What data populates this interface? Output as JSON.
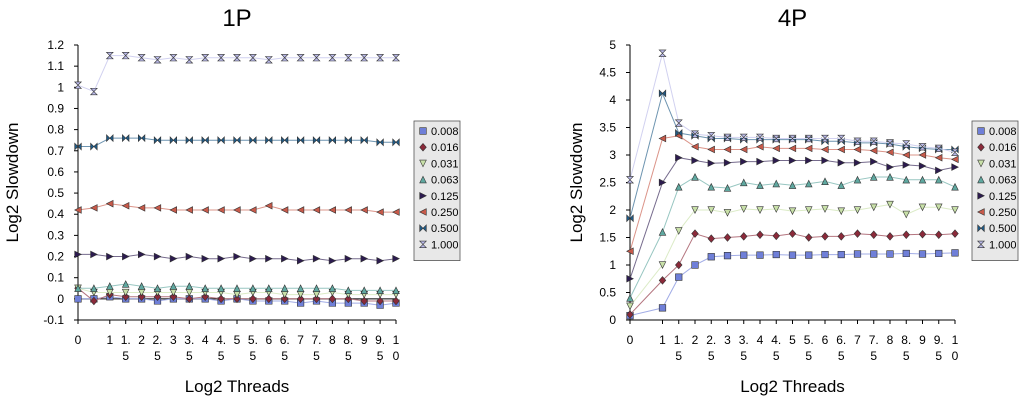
{
  "chart_data": [
    {
      "type": "line",
      "title": "1P",
      "xlabel": "Log2 Threads",
      "ylabel": "Log2 Slowdown",
      "ylim": [
        -0.1,
        1.2
      ],
      "yticks": [
        "-0.1",
        "0",
        "0.1",
        "0.2",
        "0.3",
        "0.4",
        "0.5",
        "0.6",
        "0.7",
        "0.8",
        "0.9",
        "1",
        "1.1",
        "1.2"
      ],
      "xlim": [
        0,
        10
      ],
      "xtick_labels": [
        [
          "0"
        ],
        [
          "1"
        ],
        [
          "1.",
          "5"
        ],
        [
          "2"
        ],
        [
          "2.",
          "5"
        ],
        [
          "3"
        ],
        [
          "3.",
          "5"
        ],
        [
          "4"
        ],
        [
          "4.",
          "5"
        ],
        [
          "5"
        ],
        [
          "5.",
          "5"
        ],
        [
          "6"
        ],
        [
          "6.",
          "5"
        ],
        [
          "7"
        ],
        [
          "7.",
          "5"
        ],
        [
          "8"
        ],
        [
          "8.",
          "5"
        ],
        [
          "9"
        ],
        [
          "9.",
          "5"
        ],
        [
          "1",
          "0"
        ]
      ],
      "grid": false,
      "legend_position": "right",
      "x": [
        0,
        0.5,
        1,
        1.5,
        2,
        2.5,
        3,
        3.5,
        4,
        4.5,
        5,
        5.5,
        6,
        6.5,
        7,
        7.5,
        8,
        8.5,
        9,
        9.5,
        10
      ],
      "series": [
        {
          "name": "0.008",
          "color": "#6f7fd8",
          "marker": "square",
          "values": [
            0.0,
            0.0,
            0.01,
            0.0,
            0.0,
            -0.01,
            0.0,
            0.0,
            0.0,
            -0.01,
            0.0,
            -0.01,
            -0.01,
            -0.01,
            -0.02,
            -0.01,
            -0.02,
            -0.02,
            -0.02,
            -0.03,
            -0.02
          ]
        },
        {
          "name": "0.016",
          "color": "#8b2a3a",
          "marker": "diamond",
          "values": [
            0.05,
            -0.01,
            0.02,
            0.01,
            0.01,
            0.01,
            0.01,
            0.0,
            0.01,
            0.0,
            0.0,
            0.0,
            0.0,
            0.0,
            0.0,
            0.0,
            0.0,
            0.0,
            -0.01,
            -0.01,
            -0.01
          ]
        },
        {
          "name": "0.031",
          "color": "#c8e0a8",
          "marker": "tri-down",
          "values": [
            0.05,
            0.03,
            0.03,
            0.03,
            0.03,
            0.03,
            0.03,
            0.03,
            0.03,
            0.03,
            0.02,
            0.03,
            0.03,
            0.02,
            0.02,
            0.02,
            0.03,
            0.02,
            0.02,
            0.02,
            0.02
          ]
        },
        {
          "name": "0.063",
          "color": "#5fa8a0",
          "marker": "tri-up",
          "values": [
            0.05,
            0.05,
            0.06,
            0.07,
            0.06,
            0.05,
            0.06,
            0.06,
            0.05,
            0.05,
            0.05,
            0.05,
            0.05,
            0.05,
            0.05,
            0.05,
            0.05,
            0.04,
            0.04,
            0.04,
            0.04
          ]
        },
        {
          "name": "0.125",
          "color": "#2c1b4f",
          "marker": "tri-right",
          "values": [
            0.21,
            0.21,
            0.2,
            0.2,
            0.21,
            0.2,
            0.19,
            0.2,
            0.19,
            0.19,
            0.2,
            0.19,
            0.19,
            0.19,
            0.18,
            0.19,
            0.18,
            0.19,
            0.19,
            0.18,
            0.19
          ]
        },
        {
          "name": "0.250",
          "color": "#c75a4a",
          "marker": "tri-left",
          "values": [
            0.42,
            0.43,
            0.45,
            0.44,
            0.43,
            0.43,
            0.42,
            0.42,
            0.42,
            0.42,
            0.42,
            0.42,
            0.44,
            0.42,
            0.42,
            0.42,
            0.42,
            0.42,
            0.42,
            0.41,
            0.41
          ]
        },
        {
          "name": "0.500",
          "color": "#1f5a86",
          "marker": "bowtie",
          "values": [
            0.72,
            0.72,
            0.76,
            0.76,
            0.76,
            0.75,
            0.75,
            0.75,
            0.75,
            0.75,
            0.75,
            0.75,
            0.75,
            0.75,
            0.75,
            0.75,
            0.75,
            0.75,
            0.75,
            0.74,
            0.74
          ]
        },
        {
          "name": "1.000",
          "color": "#b8b8e8",
          "marker": "hourglass",
          "values": [
            1.01,
            0.98,
            1.15,
            1.15,
            1.14,
            1.13,
            1.14,
            1.13,
            1.14,
            1.14,
            1.14,
            1.14,
            1.13,
            1.14,
            1.14,
            1.14,
            1.14,
            1.14,
            1.14,
            1.14,
            1.14
          ]
        }
      ]
    },
    {
      "type": "line",
      "title": "4P",
      "xlabel": "Log2 Threads",
      "ylabel": "Log2 Slowdown",
      "ylim": [
        0,
        5
      ],
      "yticks": [
        "0",
        "0.5",
        "1",
        "1.5",
        "2",
        "2.5",
        "3",
        "3.5",
        "4",
        "4.5",
        "5"
      ],
      "xlim": [
        0,
        10
      ],
      "xtick_labels": [
        [
          "0"
        ],
        [
          "1"
        ],
        [
          "1.",
          "5"
        ],
        [
          "2"
        ],
        [
          "2.",
          "5"
        ],
        [
          "3"
        ],
        [
          "3.",
          "5"
        ],
        [
          "4"
        ],
        [
          "4.",
          "5"
        ],
        [
          "5"
        ],
        [
          "5.",
          "5"
        ],
        [
          "6"
        ],
        [
          "6.",
          "5"
        ],
        [
          "7"
        ],
        [
          "7.",
          "5"
        ],
        [
          "8"
        ],
        [
          "8.",
          "5"
        ],
        [
          "9"
        ],
        [
          "9.",
          "5"
        ],
        [
          "1",
          "0"
        ]
      ],
      "grid": false,
      "legend_position": "right",
      "x": [
        0,
        1,
        1.5,
        2,
        2.5,
        3,
        3.5,
        4,
        4.5,
        5,
        5.5,
        6,
        6.5,
        7,
        7.5,
        8,
        8.5,
        9,
        9.5,
        10
      ],
      "series": [
        {
          "name": "0.008",
          "color": "#6f7fd8",
          "marker": "square",
          "values": [
            0.08,
            0.22,
            0.78,
            1.0,
            1.15,
            1.17,
            1.18,
            1.18,
            1.19,
            1.18,
            1.18,
            1.19,
            1.19,
            1.2,
            1.2,
            1.2,
            1.21,
            1.2,
            1.21,
            1.22
          ]
        },
        {
          "name": "0.016",
          "color": "#8b2a3a",
          "marker": "diamond",
          "values": [
            0.1,
            0.72,
            1.0,
            1.57,
            1.48,
            1.5,
            1.52,
            1.55,
            1.53,
            1.57,
            1.5,
            1.52,
            1.52,
            1.57,
            1.55,
            1.52,
            1.55,
            1.56,
            1.55,
            1.57
          ]
        },
        {
          "name": "0.031",
          "color": "#c8e0a8",
          "marker": "tri-down",
          "values": [
            0.25,
            1.0,
            1.62,
            2.0,
            2.0,
            1.95,
            2.02,
            2.0,
            2.02,
            1.98,
            2.0,
            2.02,
            1.98,
            2.0,
            2.05,
            2.1,
            1.92,
            2.05,
            2.05,
            2.0
          ]
        },
        {
          "name": "0.063",
          "color": "#5fa8a0",
          "marker": "tri-up",
          "values": [
            0.4,
            1.6,
            2.42,
            2.6,
            2.42,
            2.4,
            2.5,
            2.45,
            2.48,
            2.45,
            2.48,
            2.52,
            2.45,
            2.55,
            2.6,
            2.6,
            2.55,
            2.55,
            2.55,
            2.42
          ]
        },
        {
          "name": "0.125",
          "color": "#2c1b4f",
          "marker": "tri-right",
          "values": [
            0.75,
            2.5,
            2.95,
            2.9,
            2.85,
            2.86,
            2.88,
            2.88,
            2.9,
            2.9,
            2.9,
            2.9,
            2.86,
            2.86,
            2.88,
            2.78,
            2.82,
            2.8,
            2.72,
            2.78
          ]
        },
        {
          "name": "0.250",
          "color": "#c75a4a",
          "marker": "tri-left",
          "values": [
            1.25,
            3.3,
            3.35,
            3.15,
            3.1,
            3.1,
            3.1,
            3.15,
            3.12,
            3.12,
            3.12,
            3.1,
            3.1,
            3.1,
            3.08,
            3.05,
            3.0,
            3.0,
            2.95,
            2.92
          ]
        },
        {
          "name": "0.500",
          "color": "#1f5a86",
          "marker": "bowtie",
          "values": [
            1.85,
            4.12,
            3.4,
            3.35,
            3.3,
            3.3,
            3.28,
            3.28,
            3.28,
            3.28,
            3.28,
            3.25,
            3.25,
            3.22,
            3.22,
            3.2,
            3.15,
            3.12,
            3.1,
            3.1
          ]
        },
        {
          "name": "1.000",
          "color": "#b8b8e8",
          "marker": "hourglass",
          "values": [
            2.55,
            4.85,
            3.58,
            3.38,
            3.35,
            3.32,
            3.32,
            3.32,
            3.3,
            3.3,
            3.3,
            3.3,
            3.3,
            3.25,
            3.25,
            3.22,
            3.2,
            3.15,
            3.12,
            3.05
          ]
        }
      ]
    }
  ]
}
